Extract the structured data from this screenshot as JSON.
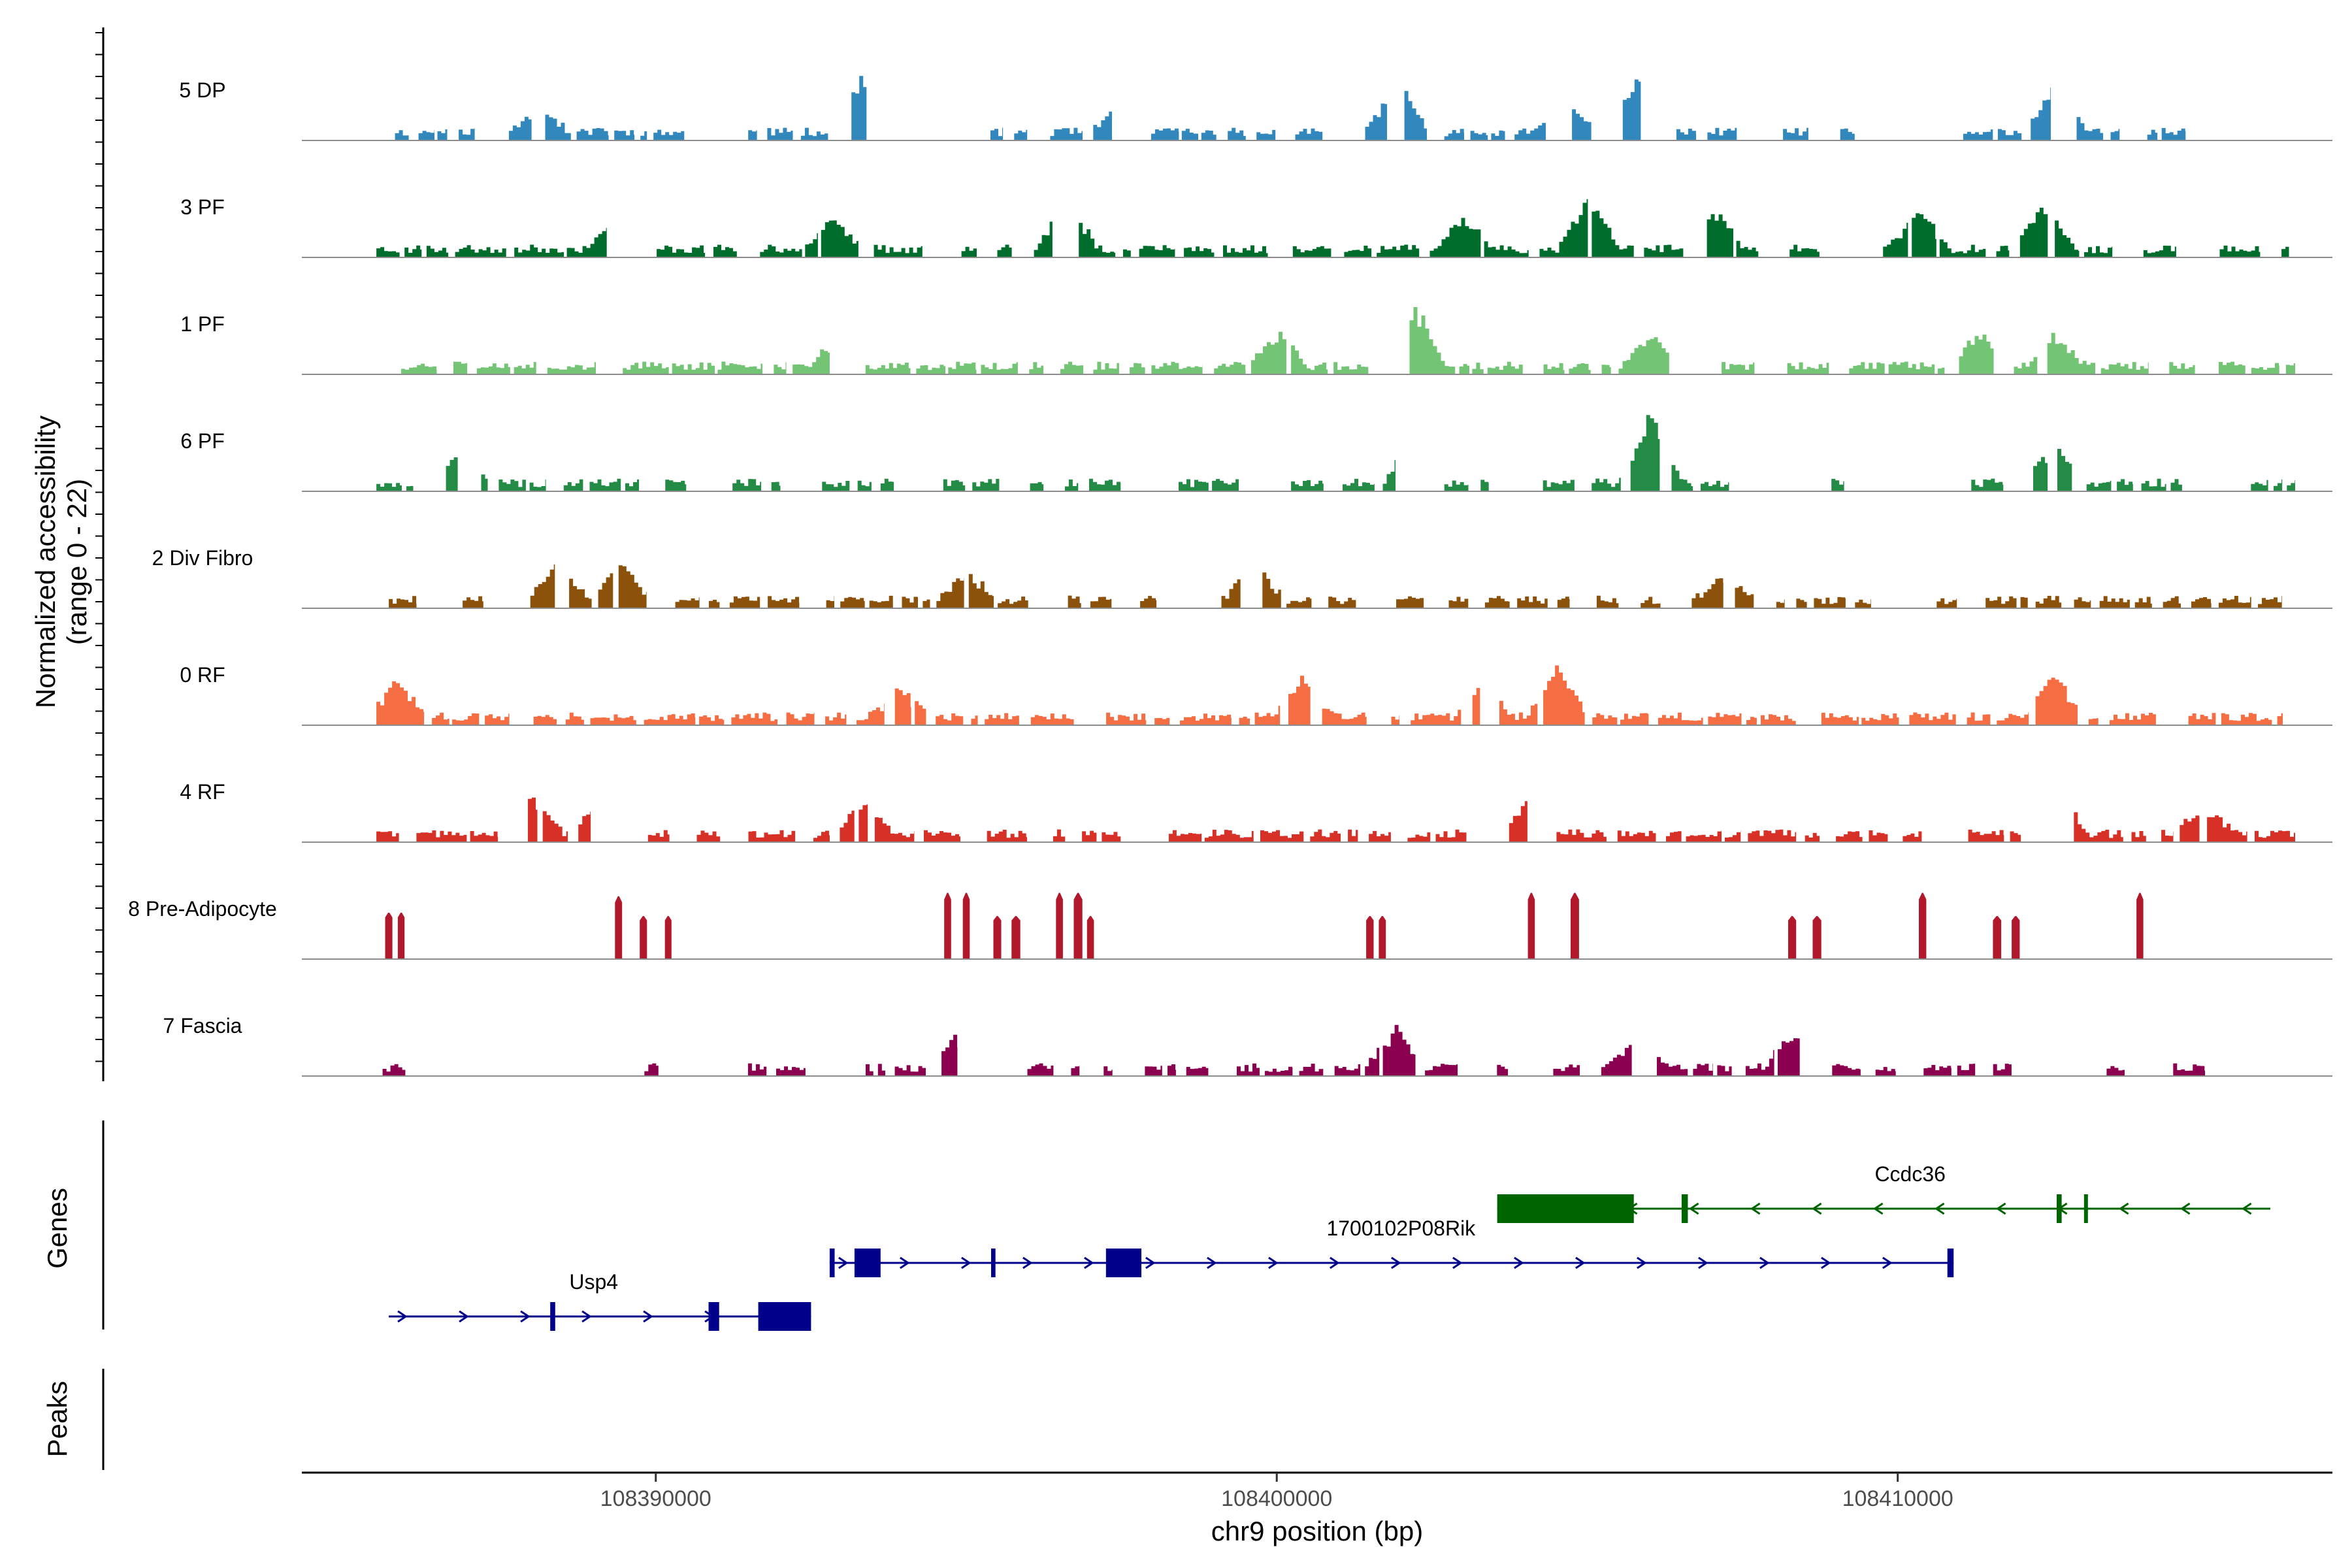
{
  "chart_data": {
    "type": "coverage",
    "y_axis_title_line1": "Normalized accessibility",
    "y_axis_title_line2": "(range 0 - 22)",
    "y_range": [
      0,
      22
    ],
    "x_axis_title": "chr9 position (bp)",
    "x_range": [
      108384300,
      108417000
    ],
    "x_ticks": [
      {
        "value": 108390000,
        "label": "108390000"
      },
      {
        "value": 108400000,
        "label": "108400000"
      },
      {
        "value": 108410000,
        "label": "108410000"
      }
    ],
    "genes_label": "Genes",
    "peaks_label": "Peaks",
    "tracks": [
      {
        "name": "5 DP",
        "color": "#3288bd",
        "style": "dense",
        "seed": 11,
        "fill": 0.45,
        "peaks": [
          [
            108388100,
            0.35
          ],
          [
            108393400,
            0.9
          ],
          [
            108397500,
            0.4
          ],
          [
            108401900,
            0.7
          ],
          [
            108404600,
            0.45
          ],
          [
            108405800,
            0.8
          ],
          [
            108412500,
            0.6
          ]
        ],
        "coverage": [
          [
            108385800,
            108415200
          ]
        ]
      },
      {
        "name": "3 PF",
        "color": "#006d2c",
        "style": "dense",
        "seed": 23,
        "fill": 0.7,
        "peaks": [
          [
            108389400,
            0.55
          ],
          [
            108392800,
            0.45
          ],
          [
            108396600,
            0.6
          ],
          [
            108403000,
            0.45
          ],
          [
            108405000,
            0.65
          ],
          [
            108407000,
            0.55
          ],
          [
            108410300,
            0.5
          ],
          [
            108412300,
            0.6
          ]
        ],
        "coverage": [
          [
            108385500,
            108416300
          ]
        ]
      },
      {
        "name": "1 PF",
        "color": "#74c476",
        "style": "dense",
        "seed": 37,
        "fill": 0.8,
        "peaks": [
          [
            108392900,
            0.3
          ],
          [
            108400000,
            0.4
          ],
          [
            108402200,
            0.8
          ],
          [
            108406000,
            0.4
          ],
          [
            108411300,
            0.45
          ],
          [
            108412500,
            0.4
          ]
        ],
        "coverage": [
          [
            108385900,
            108416400
          ]
        ]
      },
      {
        "name": "6 PF",
        "color": "#238b45",
        "style": "dense",
        "seed": 49,
        "fill": 0.55,
        "peaks": [
          [
            108386800,
            0.45
          ],
          [
            108402200,
            0.75
          ],
          [
            108406000,
            0.85
          ],
          [
            108412500,
            0.5
          ]
        ],
        "coverage": [
          [
            108385500,
            108416400
          ]
        ]
      },
      {
        "name": "2 Div Fibro",
        "color": "#8c510a",
        "style": "dense",
        "seed": 61,
        "fill": 0.6,
        "peaks": [
          [
            108388400,
            0.45
          ],
          [
            108389400,
            0.5
          ],
          [
            108395000,
            0.35
          ],
          [
            108399600,
            0.55
          ],
          [
            108407200,
            0.35
          ]
        ],
        "coverage": [
          [
            108385700,
            108416300
          ]
        ]
      },
      {
        "name": "0 RF",
        "color": "#f46d43",
        "style": "dense",
        "seed": 73,
        "fill": 0.85,
        "peaks": [
          [
            108385800,
            0.45
          ],
          [
            108393900,
            0.35
          ],
          [
            108400400,
            0.5
          ],
          [
            108403300,
            0.45
          ],
          [
            108404500,
            0.65
          ],
          [
            108412500,
            0.55
          ]
        ],
        "coverage": [
          [
            108385500,
            108416200
          ]
        ]
      },
      {
        "name": "4 RF",
        "color": "#d73027",
        "style": "dense",
        "seed": 89,
        "fill": 0.7,
        "peaks": [
          [
            108388000,
            0.45
          ],
          [
            108389000,
            0.35
          ],
          [
            108393300,
            0.4
          ],
          [
            108404000,
            0.4
          ],
          [
            108412500,
            0.75
          ],
          [
            108414900,
            0.35
          ]
        ],
        "coverage": [
          [
            108385500,
            108416400
          ]
        ]
      },
      {
        "name": "8 Pre-Adipocyte",
        "color": "#b2182b",
        "style": "spikes",
        "seed": 97,
        "fill": 1.0,
        "peaks": [
          [
            108385700,
            0.7
          ],
          [
            108385900,
            0.7
          ],
          [
            108389400,
            0.95
          ],
          [
            108389800,
            0.65
          ],
          [
            108390200,
            0.65
          ],
          [
            108394700,
            1.0
          ],
          [
            108395000,
            1.0
          ],
          [
            108395500,
            0.65
          ],
          [
            108395800,
            0.65
          ],
          [
            108396500,
            1.0
          ],
          [
            108396800,
            1.0
          ],
          [
            108397000,
            0.65
          ],
          [
            108401500,
            0.65
          ],
          [
            108401700,
            0.65
          ],
          [
            108404100,
            1.0
          ],
          [
            108404800,
            1.0
          ],
          [
            108408300,
            0.65
          ],
          [
            108408700,
            0.65
          ],
          [
            108410400,
            1.0
          ],
          [
            108411600,
            0.65
          ],
          [
            108411900,
            0.65
          ],
          [
            108413900,
            1.0
          ]
        ],
        "coverage": []
      },
      {
        "name": "7 Fascia",
        "color": "#8c0050",
        "style": "dense",
        "seed": 103,
        "fill": 0.5,
        "peaks": [
          [
            108387600,
            0.45
          ],
          [
            108391000,
            0.4
          ],
          [
            108394800,
            0.4
          ],
          [
            108401900,
            0.5
          ],
          [
            108405800,
            0.45
          ],
          [
            108408300,
            0.45
          ],
          [
            108412500,
            0.65
          ]
        ],
        "coverage": [
          [
            108385600,
            108415500
          ]
        ]
      }
    ],
    "genes": [
      {
        "name": "Ccdc36",
        "strand": "-",
        "row": 0,
        "color": "#006400",
        "start": 108403550,
        "end": 108416000,
        "exons": [
          [
            108403550,
            108405750,
            "cds"
          ],
          [
            108406520,
            108406620,
            "cds"
          ],
          [
            108412560,
            108412640,
            "cds"
          ],
          [
            108413000,
            108413060,
            "utr"
          ]
        ],
        "label_pos": 108410200
      },
      {
        "name": "1700102P08Rik",
        "strand": "+",
        "row": 1,
        "color": "#00008b",
        "start": 108392800,
        "end": 108410900,
        "exons": [
          [
            108392800,
            108392880,
            "utr"
          ],
          [
            108393200,
            108393620,
            "cds"
          ],
          [
            108395400,
            108395470,
            "cds"
          ],
          [
            108397250,
            108397820,
            "cds"
          ],
          [
            108410800,
            108410900,
            "cds"
          ]
        ],
        "label_pos": 108402000
      },
      {
        "name": "Usp4",
        "strand": "+",
        "row": 2,
        "color": "#00008b",
        "start": 108385700,
        "end": 108392500,
        "exons": [
          [
            108388300,
            108388380,
            "utr"
          ],
          [
            108390850,
            108391020,
            "cds"
          ],
          [
            108391650,
            108392500,
            "cds"
          ]
        ],
        "label_pos": 108389000
      }
    ]
  }
}
